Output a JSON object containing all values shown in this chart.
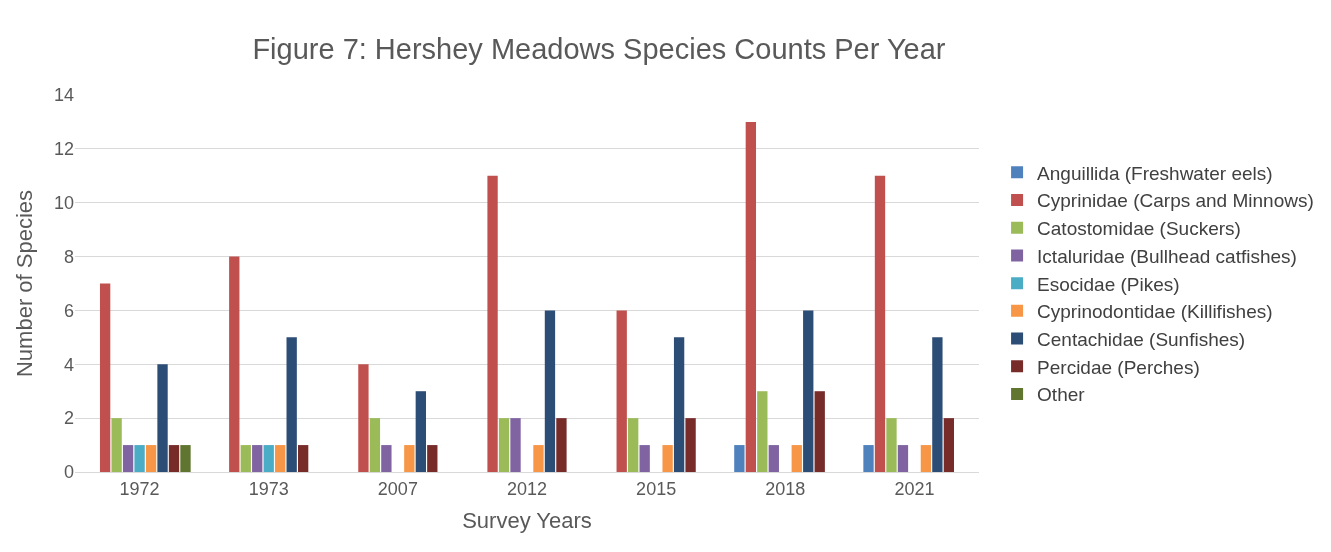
{
  "chart_data": {
    "type": "bar",
    "title": "Figure 7: Hershey Meadows Species Counts Per Year",
    "xlabel": "Survey Years",
    "ylabel": "Number of Species",
    "categories": [
      "1972",
      "1973",
      "2007",
      "2012",
      "2015",
      "2018",
      "2021"
    ],
    "ylim": [
      0,
      14
    ],
    "yticks": [
      0,
      2,
      4,
      6,
      8,
      10,
      12,
      14
    ],
    "grid": "y",
    "legend": "right",
    "series": [
      {
        "name": "Anguillida (Freshwater eels)",
        "color": "#4f81bd",
        "values": [
          null,
          null,
          null,
          null,
          null,
          1,
          1
        ]
      },
      {
        "name": "Cyprinidae (Carps and Minnows)",
        "color": "#c0504d",
        "values": [
          7,
          8,
          4,
          11,
          6,
          13,
          11
        ]
      },
      {
        "name": "Catostomidae (Suckers)",
        "color": "#9bbb59",
        "values": [
          2,
          1,
          2,
          2,
          2,
          3,
          2
        ]
      },
      {
        "name": "Ictaluridae (Bullhead catfishes)",
        "color": "#8064a2",
        "values": [
          1,
          1,
          1,
          2,
          1,
          1,
          1
        ]
      },
      {
        "name": "Esocidae (Pikes)",
        "color": "#4bacc6",
        "values": [
          1,
          1,
          null,
          null,
          null,
          null,
          null
        ]
      },
      {
        "name": "Cyprinodontidae (Killifishes)",
        "color": "#f79646",
        "values": [
          1,
          1,
          1,
          1,
          1,
          1,
          1
        ]
      },
      {
        "name": "Centachidae (Sunfishes)",
        "color": "#2c4d75",
        "values": [
          4,
          5,
          3,
          6,
          5,
          6,
          5
        ]
      },
      {
        "name": "Percidae (Perches)",
        "color": "#772c2a",
        "values": [
          1,
          1,
          1,
          2,
          2,
          3,
          2
        ]
      },
      {
        "name": "Other",
        "color": "#5f7530",
        "values": [
          1,
          null,
          null,
          null,
          null,
          null,
          null
        ]
      }
    ]
  }
}
